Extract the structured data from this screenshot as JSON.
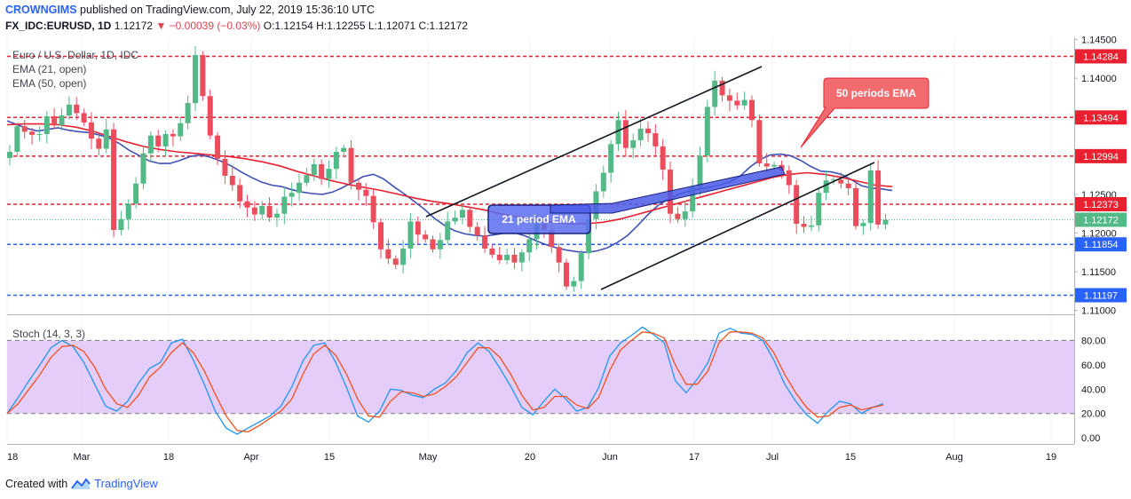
{
  "header": {
    "author": "CROWNGIMS",
    "published": "published on TradingView.com, July 22, 2019 15:36:10 UTC",
    "symbol": "FX_IDC:EURUSD, 1D",
    "last": "1.12172",
    "change": "▼ −0.00039 (−0.03%)",
    "ohlc": "O:1.12154 H:1.12255 L:1.12071 C:1.12172"
  },
  "legend": {
    "title": "Euro / U.S. Dollar, 1D, IDC",
    "ema21": "EMA (21, open)",
    "ema50": "EMA (50, open)",
    "stoch": "Stoch (14, 3, 3)"
  },
  "annotations": {
    "ema50_callout": "50 periods EMA",
    "ema21_callout": "21 period EMA"
  },
  "footer": {
    "created": "Created with",
    "brand": "TradingView"
  },
  "colors": {
    "up": "#53b987",
    "down": "#eb4d5c",
    "ema21": "#3f51b5",
    "ema50": "#e8202f",
    "stoch_k": "#2196f3",
    "stoch_d": "#f4511e",
    "stoch_band": "#e1c4f9",
    "resistance": "#e8202f",
    "support": "#2962ff",
    "callout": "#f26b6f"
  },
  "chart_data": [
    {
      "type": "candlestick",
      "ylim": [
        1.1095,
        1.1453
      ],
      "price_axis_ticks": [
        "1.14500",
        "1.14000",
        "1.12500",
        "1.12000",
        "1.11500",
        "1.11000"
      ],
      "x_ticks": [
        "18",
        "Mar",
        "18",
        "Apr",
        "15",
        "May",
        "20",
        "Jun",
        "17",
        "Jul",
        "15",
        "Aug",
        "19"
      ],
      "levels": [
        {
          "value": 1.14284,
          "label": "1.14284",
          "kind": "resistance"
        },
        {
          "value": 1.13494,
          "label": "1.13494",
          "kind": "resistance"
        },
        {
          "value": 1.12994,
          "label": "1.12994",
          "kind": "resistance"
        },
        {
          "value": 1.12373,
          "label": "1.12373",
          "kind": "resistance"
        },
        {
          "value": 1.11854,
          "label": "1.11854",
          "kind": "support"
        },
        {
          "value": 1.11197,
          "label": "1.11197",
          "kind": "support"
        }
      ],
      "last_price": {
        "value": 1.12172,
        "label": "1.12172"
      },
      "closes": [
        1.1305,
        1.1338,
        1.1331,
        1.1327,
        1.1328,
        1.1351,
        1.1339,
        1.1352,
        1.1366,
        1.1355,
        1.1343,
        1.1322,
        1.1309,
        1.1334,
        1.1204,
        1.1218,
        1.1238,
        1.1264,
        1.1303,
        1.1326,
        1.1312,
        1.1328,
        1.1325,
        1.1342,
        1.1368,
        1.143,
        1.1377,
        1.1326,
        1.1296,
        1.1274,
        1.1262,
        1.1241,
        1.1233,
        1.1224,
        1.1235,
        1.122,
        1.1225,
        1.1247,
        1.1252,
        1.1265,
        1.1275,
        1.1289,
        1.127,
        1.1283,
        1.1305,
        1.131,
        1.1265,
        1.1256,
        1.1248,
        1.1214,
        1.1179,
        1.1167,
        1.1159,
        1.118,
        1.1215,
        1.1198,
        1.1192,
        1.1179,
        1.1191,
        1.1215,
        1.122,
        1.123,
        1.1208,
        1.1197,
        1.118,
        1.1172,
        1.1165,
        1.1172,
        1.1162,
        1.1175,
        1.1192,
        1.1212,
        1.1204,
        1.1182,
        1.1162,
        1.1131,
        1.1138,
        1.1174,
        1.1218,
        1.1254,
        1.1278,
        1.1315,
        1.1346,
        1.131,
        1.132,
        1.1335,
        1.1329,
        1.1312,
        1.1282,
        1.1225,
        1.1218,
        1.1228,
        1.126,
        1.13,
        1.1363,
        1.1397,
        1.1378,
        1.1371,
        1.1365,
        1.1372,
        1.1346,
        1.129,
        1.1286,
        1.1288,
        1.1281,
        1.1262,
        1.1212,
        1.1208,
        1.121,
        1.1252,
        1.1268,
        1.1269,
        1.1264,
        1.1258,
        1.1209,
        1.1213,
        1.1281,
        1.1211,
        1.1217
      ],
      "series": [
        {
          "name": "EMA (21, open)",
          "values": [
            1.1345,
            1.134,
            1.1335,
            1.1332,
            1.1334,
            1.1336,
            1.1333,
            1.1331,
            1.133,
            1.1327,
            1.1323,
            1.1316,
            1.1307,
            1.13,
            1.1293,
            1.129,
            1.129,
            1.1294,
            1.1299,
            1.1301,
            1.1298,
            1.1293,
            1.1287,
            1.1279,
            1.1272,
            1.1266,
            1.1262,
            1.126,
            1.1256,
            1.1253,
            1.1251,
            1.125,
            1.1253,
            1.1259,
            1.1266,
            1.1273,
            1.1276,
            1.127,
            1.126,
            1.1251,
            1.1241,
            1.1231,
            1.1219,
            1.121,
            1.1203,
            1.1199,
            1.1197,
            1.1196,
            1.1198,
            1.12,
            1.12,
            1.1196,
            1.119,
            1.1185,
            1.1181,
            1.1178,
            1.1176,
            1.1175,
            1.1177,
            1.1181,
            1.1188,
            1.1197,
            1.121,
            1.1224,
            1.1236,
            1.1244,
            1.125,
            1.1254,
            1.1257,
            1.1259,
            1.1262,
            1.1266,
            1.1273,
            1.1285,
            1.1295,
            1.1301,
            1.1302,
            1.13,
            1.1294,
            1.1286,
            1.128,
            1.1279,
            1.1276,
            1.1269,
            1.1261,
            1.1258,
            1.1257,
            1.1255
          ]
        },
        {
          "name": "EMA (50, open)",
          "values": [
            1.134,
            1.1341,
            1.1341,
            1.134,
            1.1337,
            1.1332,
            1.1325,
            1.1318,
            1.1312,
            1.1308,
            1.1305,
            1.1303,
            1.1301,
            1.1299,
            1.1296,
            1.1292,
            1.1287,
            1.128,
            1.1274,
            1.1268,
            1.1263,
            1.1259,
            1.1255,
            1.125,
            1.1245,
            1.1241,
            1.1238,
            1.1234,
            1.123,
            1.1225,
            1.1221,
            1.1217,
            1.1214,
            1.1212,
            1.1212,
            1.1214,
            1.1218,
            1.1224,
            1.123,
            1.1236,
            1.1242,
            1.1248,
            1.1254,
            1.126,
            1.1266,
            1.1272,
            1.1276,
            1.1278,
            1.1276,
            1.1272,
            1.1267,
            1.1262,
            1.126
          ]
        }
      ],
      "trend_channel": [
        {
          "from": [
            "May 1",
            1.123
          ],
          "to": [
            "Jun 24",
            1.1413
          ]
        },
        {
          "from": [
            "May 29",
            1.1118
          ],
          "to": [
            "Jul 16",
            1.1291
          ]
        }
      ]
    },
    {
      "type": "line",
      "title": "Stoch (14, 3, 3)",
      "ylim": [
        -5,
        100
      ],
      "y_ticks": [
        "80.00",
        "60.00",
        "40.00",
        "20.00",
        "0.00"
      ],
      "band": [
        20,
        80
      ],
      "series": [
        {
          "name": "%K",
          "values": [
            20,
            33,
            47,
            60,
            74,
            80,
            75,
            62,
            44,
            26,
            22,
            30,
            45,
            57,
            62,
            78,
            81,
            64,
            44,
            22,
            8,
            3,
            8,
            13,
            18,
            26,
            42,
            63,
            76,
            78,
            62,
            41,
            18,
            13,
            22,
            40,
            39,
            35,
            33,
            40,
            45,
            55,
            70,
            78,
            71,
            57,
            42,
            25,
            19,
            30,
            40,
            32,
            22,
            25,
            41,
            67,
            78,
            84,
            91,
            85,
            78,
            47,
            37,
            48,
            62,
            86,
            90,
            86,
            85,
            80,
            64,
            44,
            30,
            19,
            12,
            22,
            30,
            28,
            20,
            25,
            28
          ]
        },
        {
          "name": "%D",
          "values": [
            20,
            28,
            40,
            52,
            66,
            75,
            76,
            71,
            58,
            40,
            28,
            25,
            35,
            50,
            58,
            70,
            78,
            70,
            55,
            36,
            18,
            6,
            5,
            10,
            16,
            22,
            32,
            52,
            69,
            76,
            68,
            52,
            32,
            18,
            17,
            30,
            38,
            37,
            34,
            36,
            42,
            50,
            62,
            74,
            74,
            66,
            52,
            35,
            23,
            25,
            34,
            34,
            27,
            24,
            33,
            55,
            72,
            80,
            87,
            86,
            82,
            60,
            44,
            44,
            55,
            78,
            87,
            87,
            86,
            82,
            70,
            52,
            37,
            25,
            17,
            18,
            25,
            27,
            23,
            25,
            27
          ]
        }
      ]
    }
  ]
}
